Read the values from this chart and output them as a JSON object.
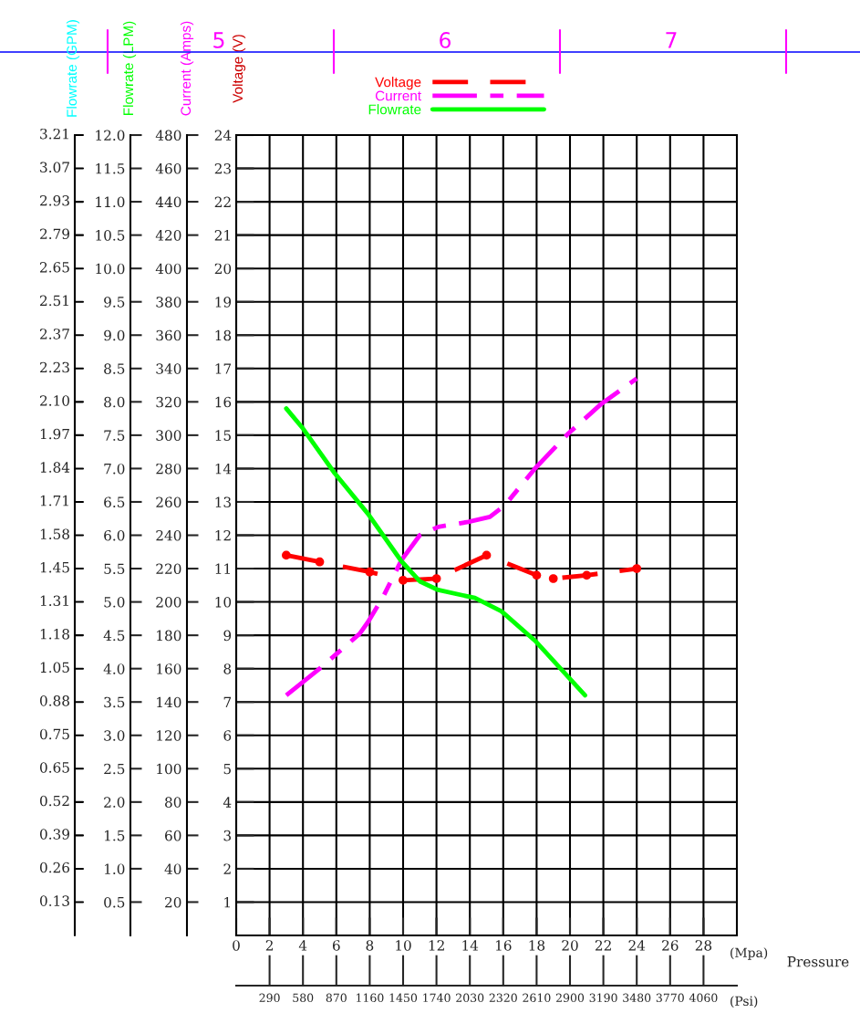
{
  "chart_data": {
    "type": "line",
    "x": [
      3,
      5,
      8,
      10,
      12,
      15,
      18,
      19,
      21,
      24
    ],
    "xlim": [
      0,
      30
    ],
    "xticks": [
      {
        "value": 0,
        "label": "0"
      },
      2,
      4,
      6,
      8,
      10,
      12,
      14,
      16,
      18,
      20,
      22,
      24,
      26,
      28
    ],
    "xlabel": "(Mpa)",
    "x2label": "(Psi)",
    "x2lim": [
      0,
      4350
    ],
    "x2ticks": [
      290,
      580,
      870,
      1160,
      1450,
      1740,
      2030,
      2320,
      2610,
      2900,
      3190,
      3480,
      3770,
      4060
    ],
    "ylabel": "Voltage (V)",
    "ylim": [
      0,
      24
    ],
    "yticks": [
      1,
      2,
      3,
      4,
      5,
      6,
      7,
      8,
      9,
      10,
      11,
      12,
      13,
      14,
      15,
      16,
      17,
      18,
      19,
      20,
      21,
      22,
      23,
      24
    ],
    "y2label": "Current (Amps)",
    "y2lim": [
      0,
      480
    ],
    "y2ticks": [
      20,
      40,
      60,
      80,
      100,
      120,
      140,
      160,
      180,
      200,
      220,
      240,
      260,
      280,
      300,
      320,
      340,
      360,
      380,
      400,
      420,
      440,
      460,
      480
    ],
    "y3label": "Flowrate (LPM)",
    "y3lim": [
      0,
      12
    ],
    "y3ticks": [
      0.5,
      {
        "value": 1,
        "label": "1.0"
      },
      1.5,
      {
        "value": 2,
        "label": "2.0"
      },
      2.5,
      {
        "value": 3,
        "label": "3.0"
      },
      3.5,
      {
        "value": 4,
        "label": "4.0"
      },
      4.5,
      {
        "value": 5,
        "label": "5.0"
      },
      5.5,
      {
        "value": 6,
        "label": "6.0"
      },
      6.5,
      {
        "value": 7,
        "label": "7.0"
      },
      7.5,
      {
        "value": 8,
        "label": "8.0"
      },
      8.5,
      {
        "value": 9,
        "label": "9.0"
      },
      9.5,
      {
        "value": 10,
        "label": "10.0"
      },
      10.5,
      {
        "value": 11,
        "label": "11.0"
      },
      11.5,
      {
        "value": 12,
        "label": "12.0"
      }
    ],
    "grid": true,
    "legend": "top",
    "annotations": [
      "5",
      "6",
      "7",
      "Pressure",
      "Flowrate (GPM)",
      "0.13",
      "0.26",
      "0.39",
      "0.52",
      "0.65",
      "0.75",
      "0.88",
      "1.05",
      "1.18",
      "1.31",
      "1.45",
      "1.58",
      "1.71",
      "1.84",
      "1.97",
      "2.10",
      "2.23",
      "2.37",
      "2.51",
      "2.65",
      "2.79",
      "2.93",
      "3.07",
      "3.21"
    ],
    "series": [
      {
        "name": "Voltage",
        "color": "#ff0000",
        "line_style": "dashed",
        "marker": "circle",
        "values": [
          11.4,
          11.2,
          10.9,
          10.65,
          10.7,
          11.4,
          10.8,
          10.7,
          10.8,
          11.0
        ]
      },
      {
        "name": "Current",
        "color": "#ff00ff",
        "line_style": "dashdot",
        "marker": "none",
        "axis": "y2",
        "x": [
          3,
          5,
          7.4,
          7.9,
          8.8,
          9.9,
          11,
          12.1,
          13.9,
          15.2,
          16.1,
          17.9,
          19.9,
          21.9,
          24
        ],
        "values": [
          144,
          160,
          181,
          188,
          203,
          225,
          240,
          245,
          248,
          251,
          258,
          280,
          301,
          319,
          334
        ]
      },
      {
        "name": "Flowrate",
        "color": "#00ff00",
        "line_style": "solid",
        "marker": "none",
        "axis": "y3",
        "x": [
          3,
          4,
          5.9,
          7.9,
          9.9,
          11,
          12.1,
          14.3,
          15.9,
          17.9,
          20.9
        ],
        "values": [
          7.9,
          7.6,
          6.93,
          6.32,
          5.61,
          5.31,
          5.18,
          5.06,
          4.86,
          4.42,
          3.6
        ]
      }
    ]
  }
}
